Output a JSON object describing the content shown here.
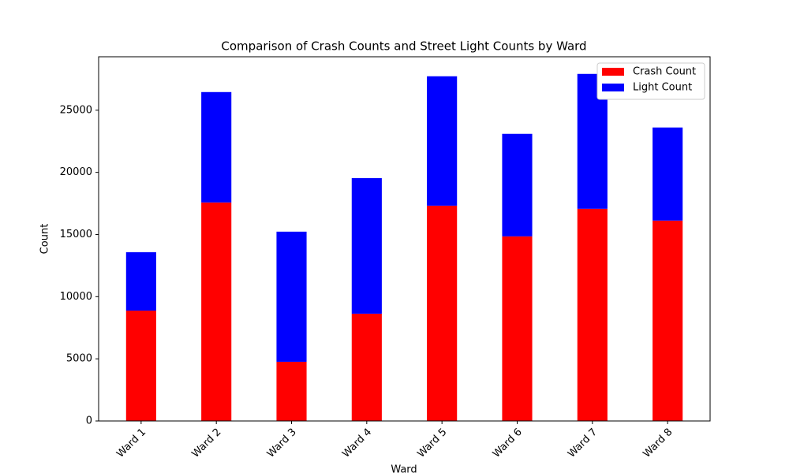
{
  "chart_data": {
    "type": "stacked_bar",
    "title": "Comparison of Crash Counts and Street Light Counts by Ward",
    "x_label": "Ward",
    "y_label": "Count",
    "categories": [
      "Ward 1",
      "Ward 2",
      "Ward 3",
      "Ward 4",
      "Ward 5",
      "Ward 6",
      "Ward 7",
      "Ward 8"
    ],
    "series": [
      {
        "name": "Crash Count",
        "color": "#ff0000",
        "values": [
          8880,
          17580,
          4760,
          8630,
          17320,
          14850,
          17070,
          16120
        ]
      },
      {
        "name": "Light Count",
        "color": "#0000ff",
        "values": [
          4700,
          8880,
          10470,
          10910,
          10410,
          8250,
          10850,
          7490
        ]
      }
    ],
    "ylim": [
      0,
      29300
    ],
    "yticks": [
      0,
      5000,
      10000,
      15000,
      20000,
      25000
    ],
    "legend": "upper right"
  }
}
